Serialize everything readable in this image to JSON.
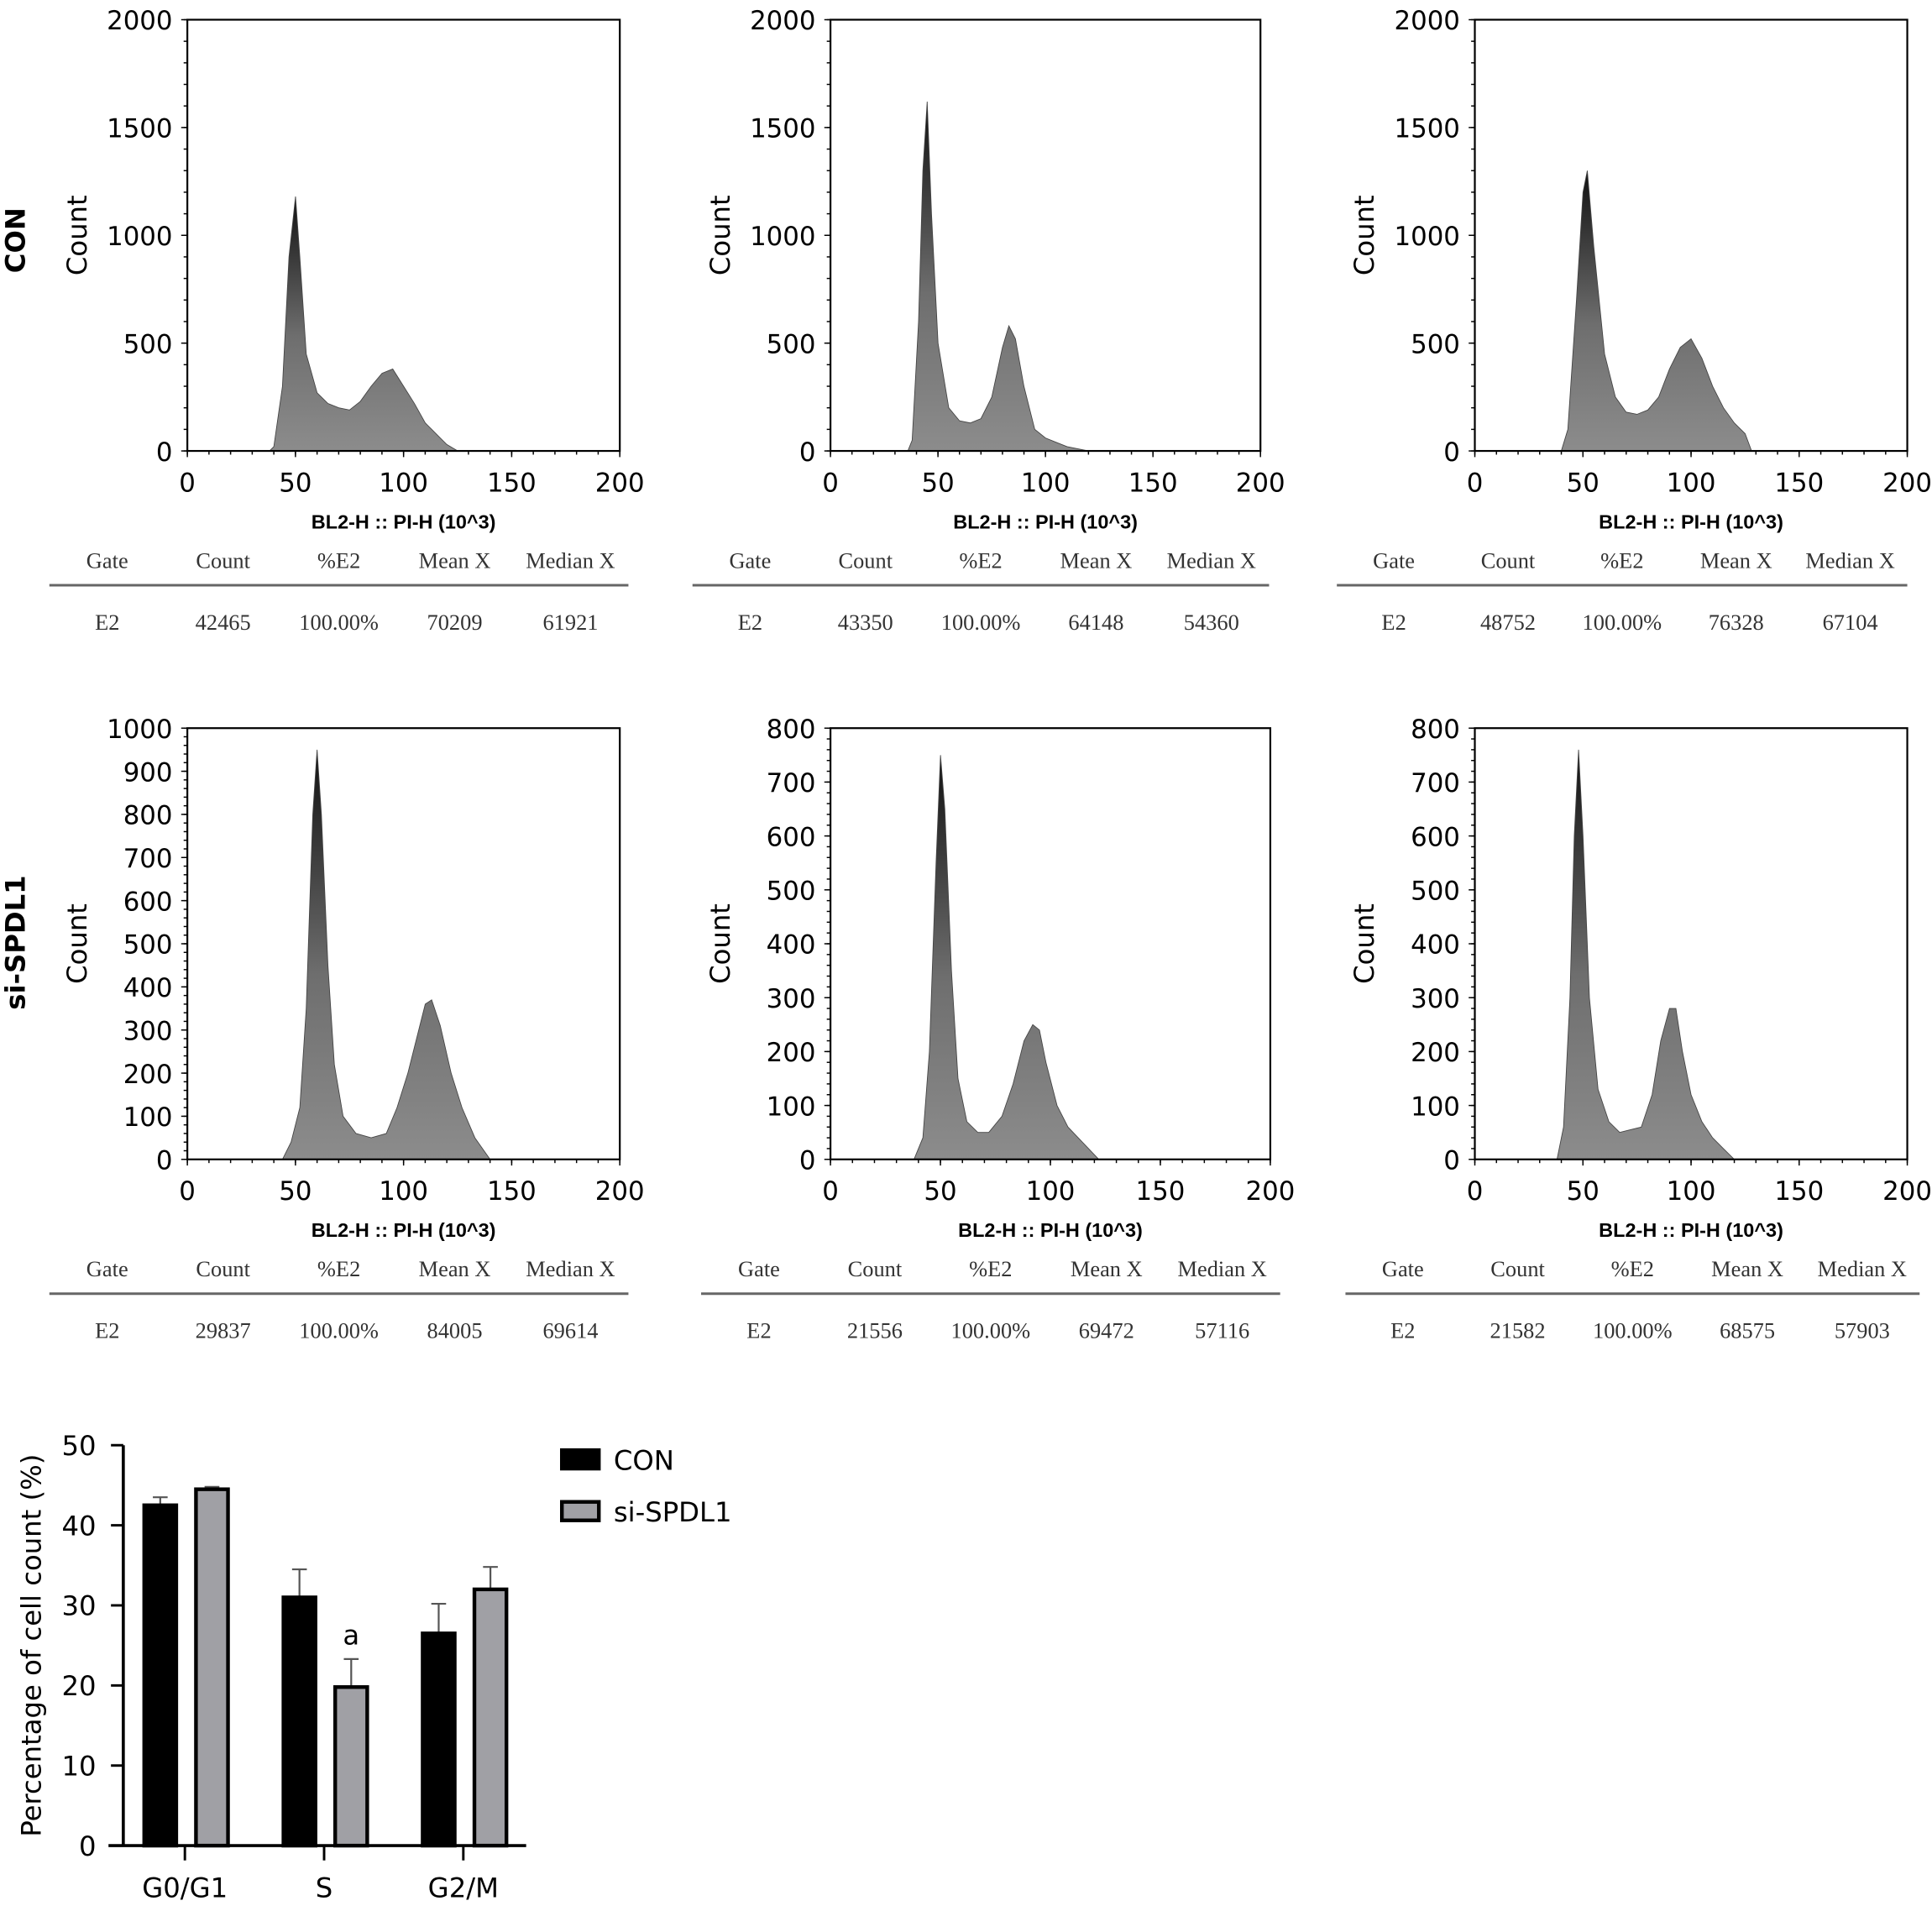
{
  "row_labels": [
    "CON",
    "si-SPDL1"
  ],
  "chart_data": [
    {
      "type": "area",
      "group": "CON",
      "title": "",
      "xlabel": "BL2-H :: PI-H (10^3)",
      "ylabel": "Count",
      "xlim": [
        0,
        200
      ],
      "ylim": [
        0,
        2000
      ],
      "xticks": [
        0,
        50,
        100,
        150,
        200
      ],
      "yticks": [
        0,
        500,
        1000,
        1500,
        2000
      ],
      "x": [
        0,
        38,
        40,
        44,
        47,
        50,
        52,
        55,
        60,
        65,
        70,
        75,
        80,
        85,
        90,
        95,
        100,
        105,
        110,
        113,
        117,
        120,
        125,
        200
      ],
      "y": [
        0,
        0,
        20,
        300,
        900,
        1180,
        900,
        450,
        270,
        220,
        200,
        190,
        230,
        300,
        360,
        380,
        300,
        220,
        130,
        100,
        60,
        30,
        0,
        0
      ],
      "table": {
        "headers": [
          "Gate",
          "Count",
          "%E2",
          "Mean X",
          "Median X"
        ],
        "row": [
          "E2",
          "42465",
          "100.00%",
          "70209",
          "61921"
        ]
      }
    },
    {
      "type": "area",
      "group": "CON",
      "title": "",
      "xlabel": "BL2-H :: PI-H (10^3)",
      "ylabel": "Count",
      "xlim": [
        0,
        200
      ],
      "ylim": [
        0,
        2000
      ],
      "xticks": [
        0,
        50,
        100,
        150,
        200
      ],
      "yticks": [
        0,
        500,
        1000,
        1500,
        2000
      ],
      "x": [
        0,
        36,
        38,
        41,
        43,
        45,
        47,
        50,
        55,
        60,
        65,
        70,
        75,
        80,
        83,
        86,
        90,
        95,
        100,
        105,
        110,
        120,
        200
      ],
      "y": [
        0,
        0,
        50,
        600,
        1300,
        1620,
        1100,
        500,
        200,
        140,
        130,
        150,
        250,
        480,
        580,
        520,
        300,
        100,
        60,
        40,
        20,
        0,
        0
      ],
      "table": {
        "headers": [
          "Gate",
          "Count",
          "%E2",
          "Mean X",
          "Median X"
        ],
        "row": [
          "E2",
          "43350",
          "100.00%",
          "64148",
          "54360"
        ]
      }
    },
    {
      "type": "area",
      "group": "CON",
      "title": "",
      "xlabel": "BL2-H :: PI-H (10^3)",
      "ylabel": "Count",
      "xlim": [
        0,
        200
      ],
      "ylim": [
        0,
        2000
      ],
      "xticks": [
        0,
        50,
        100,
        150,
        200
      ],
      "yticks": [
        0,
        500,
        1000,
        1500,
        2000
      ],
      "x": [
        0,
        40,
        43,
        47,
        50,
        52,
        55,
        60,
        65,
        70,
        75,
        80,
        85,
        90,
        95,
        100,
        105,
        110,
        115,
        120,
        125,
        128,
        200
      ],
      "y": [
        0,
        0,
        100,
        700,
        1200,
        1300,
        950,
        450,
        250,
        180,
        170,
        190,
        250,
        380,
        480,
        520,
        430,
        300,
        200,
        130,
        80,
        0,
        0
      ],
      "table": {
        "headers": [
          "Gate",
          "Count",
          "%E2",
          "Mean X",
          "Median X"
        ],
        "row": [
          "E2",
          "48752",
          "100.00%",
          "76328",
          "67104"
        ]
      }
    },
    {
      "type": "area",
      "group": "si-SPDL1",
      "title": "",
      "xlabel": "BL2-H :: PI-H (10^3)",
      "ylabel": "Count",
      "xlim": [
        0,
        200
      ],
      "ylim": [
        0,
        1000
      ],
      "xticks": [
        0,
        50,
        100,
        150,
        200
      ],
      "yticks": [
        0,
        100,
        200,
        300,
        400,
        500,
        600,
        700,
        800,
        900,
        1000
      ],
      "x": [
        0,
        44,
        48,
        52,
        55,
        58,
        60,
        62,
        65,
        68,
        72,
        78,
        85,
        92,
        97,
        102,
        107,
        110,
        113,
        117,
        122,
        127,
        133,
        140,
        200
      ],
      "y": [
        0,
        0,
        40,
        120,
        350,
        800,
        950,
        800,
        450,
        220,
        100,
        60,
        50,
        60,
        120,
        200,
        300,
        360,
        370,
        310,
        200,
        120,
        50,
        0,
        0
      ],
      "table": {
        "headers": [
          "Gate",
          "Count",
          "%E2",
          "Mean X",
          "Median X"
        ],
        "row": [
          "E2",
          "29837",
          "100.00%",
          "84005",
          "69614"
        ]
      }
    },
    {
      "type": "area",
      "group": "si-SPDL1",
      "title": "",
      "xlabel": "BL2-H :: PI-H (10^3)",
      "ylabel": "Count",
      "xlim": [
        0,
        200
      ],
      "ylim": [
        0,
        800
      ],
      "xticks": [
        0,
        50,
        100,
        150,
        200
      ],
      "yticks": [
        0,
        100,
        200,
        300,
        400,
        500,
        600,
        700,
        800
      ],
      "x": [
        0,
        38,
        42,
        45,
        48,
        50,
        52,
        55,
        58,
        62,
        67,
        72,
        78,
        83,
        88,
        92,
        95,
        98,
        103,
        108,
        115,
        122,
        200
      ],
      "y": [
        0,
        0,
        40,
        200,
        550,
        750,
        650,
        350,
        150,
        70,
        50,
        50,
        80,
        140,
        220,
        250,
        240,
        180,
        100,
        60,
        30,
        0,
        0
      ],
      "table": {
        "headers": [
          "Gate",
          "Count",
          "%E2",
          "Mean X",
          "Median X"
        ],
        "row": [
          "E2",
          "21556",
          "100.00%",
          "69472",
          "57116"
        ]
      }
    },
    {
      "type": "area",
      "group": "si-SPDL1",
      "title": "",
      "xlabel": "BL2-H :: PI-H (10^3)",
      "ylabel": "Count",
      "xlim": [
        0,
        200
      ],
      "ylim": [
        0,
        800
      ],
      "xticks": [
        0,
        50,
        100,
        150,
        200
      ],
      "yticks": [
        0,
        100,
        200,
        300,
        400,
        500,
        600,
        700,
        800
      ],
      "x": [
        0,
        38,
        41,
        44,
        46,
        48,
        50,
        53,
        57,
        62,
        67,
        72,
        77,
        82,
        86,
        90,
        93,
        96,
        100,
        105,
        110,
        115,
        120,
        200
      ],
      "y": [
        0,
        0,
        60,
        300,
        600,
        760,
        600,
        300,
        130,
        70,
        50,
        55,
        60,
        120,
        220,
        280,
        280,
        200,
        120,
        70,
        40,
        20,
        0,
        0
      ],
      "table": {
        "headers": [
          "Gate",
          "Count",
          "%E2",
          "Mean X",
          "Median X"
        ],
        "row": [
          "E2",
          "21582",
          "100.00%",
          "68575",
          "57903"
        ]
      }
    },
    {
      "type": "bar",
      "title": "",
      "xlabel": "",
      "ylabel": "Percentage of cell count (%)",
      "ylim": [
        0,
        50
      ],
      "yticks": [
        0,
        10,
        20,
        30,
        40,
        50
      ],
      "categories": [
        "G0/G1",
        "S",
        "G2/M"
      ],
      "series": [
        {
          "name": "CON",
          "values": [
            42.5,
            31.0,
            26.5
          ],
          "errors": [
            1.0,
            3.5,
            3.7
          ],
          "color": "#000000"
        },
        {
          "name": "si-SPDL1",
          "values": [
            44.5,
            19.8,
            32.0
          ],
          "errors": [
            0.3,
            3.5,
            2.8
          ],
          "color": "#a0a0a5"
        }
      ],
      "annotations": [
        {
          "category": "S",
          "series": "si-SPDL1",
          "text": "a"
        }
      ],
      "legend": "top-right"
    }
  ],
  "colors": {
    "histogram_peak": "#111111",
    "histogram_base": "#8a8a8a",
    "table_line": "#666666"
  }
}
